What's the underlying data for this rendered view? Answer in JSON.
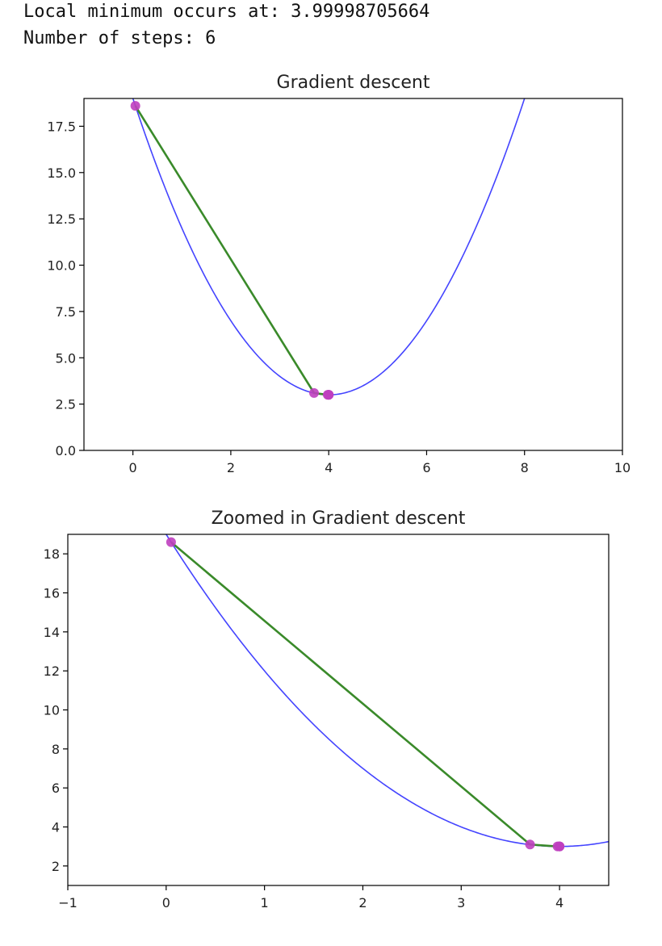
{
  "output": {
    "local_min_line": "Local minimum occurs at: 3.99998705664",
    "steps_line": "Number of steps: 6"
  },
  "colors": {
    "curve": "#4444ff",
    "path": "#3a8a2a",
    "points": "#bf3fbf",
    "axes": "#000000"
  },
  "chart_data": [
    {
      "type": "line",
      "title": "Gradient descent",
      "xlim": [
        -1,
        10
      ],
      "ylim": [
        0,
        19
      ],
      "xticks": [
        0,
        2,
        4,
        6,
        8,
        10
      ],
      "xtick_labels": [
        "0",
        "2",
        "4",
        "6",
        "8",
        "10"
      ],
      "yticks": [
        0,
        2.5,
        5,
        7.5,
        10,
        12.5,
        15,
        17.5
      ],
      "ytick_labels": [
        "0.0",
        "2.5",
        "5.0",
        "7.5",
        "10.0",
        "12.5",
        "15.0",
        "17.5"
      ],
      "curve": {
        "vertex_x": 4,
        "vertex_y": 3,
        "a": 1.0
      },
      "series": [
        {
          "x": [
            0.05,
            3.7,
            3.98,
            4.0,
            4.0,
            4.0
          ],
          "y": [
            18.6,
            3.1,
            3.0,
            3.0,
            3.0,
            3.0
          ]
        }
      ]
    },
    {
      "type": "line",
      "title": "Zoomed in Gradient descent",
      "xlim": [
        -1,
        4.5
      ],
      "ylim": [
        1,
        19
      ],
      "xticks": [
        -1,
        0,
        1,
        2,
        3,
        4
      ],
      "xtick_labels": [
        "−1",
        "0",
        "1",
        "2",
        "3",
        "4"
      ],
      "yticks": [
        2,
        4,
        6,
        8,
        10,
        12,
        14,
        16,
        18
      ],
      "ytick_labels": [
        "2",
        "4",
        "6",
        "8",
        "10",
        "12",
        "14",
        "16",
        "18"
      ],
      "curve": {
        "vertex_x": 4,
        "vertex_y": 3,
        "a": 1.0
      },
      "series": [
        {
          "x": [
            0.05,
            3.7,
            3.98,
            4.0,
            4.0,
            4.0
          ],
          "y": [
            18.6,
            3.1,
            3.0,
            3.0,
            3.0,
            3.0
          ]
        }
      ]
    }
  ]
}
